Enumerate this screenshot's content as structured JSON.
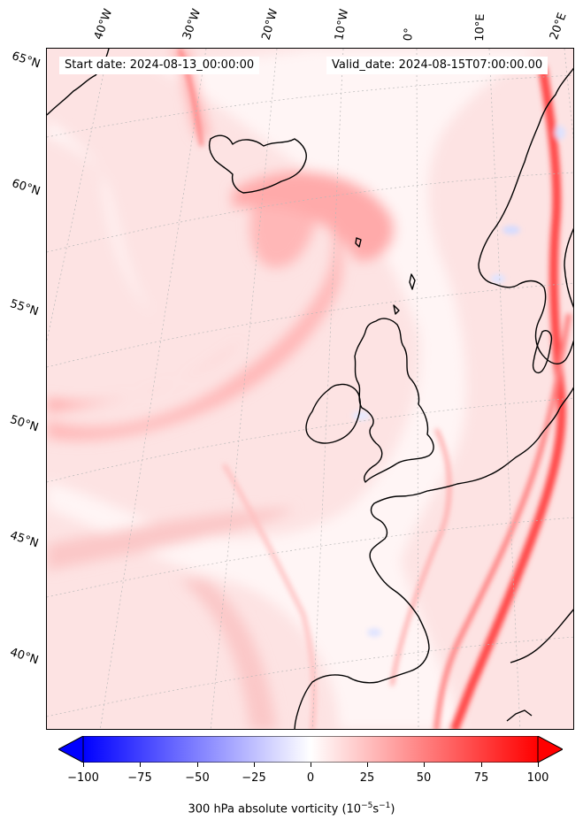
{
  "map": {
    "start_date_text": "Start date: 2024-08-13_00:00:00",
    "valid_date_text": "Valid_date: 2024-08-15T07:00:00.00",
    "longitude_labels": [
      "40°W",
      "30°W",
      "20°W",
      "10°W",
      "0°",
      "10°E",
      "20°E"
    ],
    "latitude_labels": [
      "65°N",
      "60°N",
      "55°N",
      "50°N",
      "45°N",
      "40°N"
    ],
    "field": "300 hPa absolute vorticity",
    "region": "North Atlantic and Western Europe"
  },
  "colorbar": {
    "ticks": [
      "−100",
      "−75",
      "−50",
      "−25",
      "0",
      "25",
      "50",
      "75",
      "100"
    ],
    "label": "300 hPa absolute vorticity (10",
    "label_exp1": "−5",
    "label_mid": "s",
    "label_exp2": "−1",
    "label_end": ")",
    "min": -100,
    "max": 100,
    "colormap": "bwr",
    "color_low": "#0000ff",
    "color_mid": "#ffffff",
    "color_high": "#ff0000"
  }
}
